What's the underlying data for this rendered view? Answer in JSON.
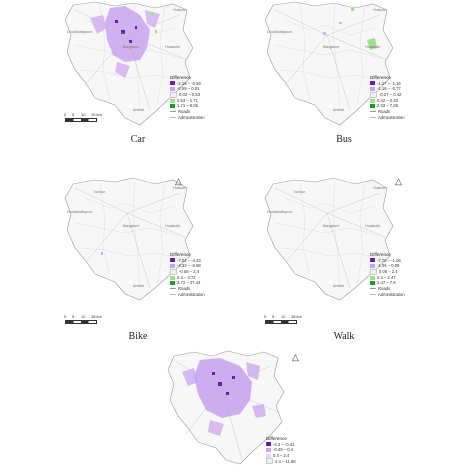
{
  "colors": {
    "purple_dark": "#6a1bb3",
    "purple_light": "#c9a3f0",
    "lavender": "#e6d6fb",
    "green_light": "#9fe08a",
    "green_dark": "#1c9c2a",
    "roads": "#b4b4b4",
    "admin": "#d0d0d0"
  },
  "north_symbol": "north-arrow-icon",
  "scale": {
    "ticks": [
      "0",
      "5",
      "10",
      "15 km"
    ]
  },
  "panels": [
    {
      "id": "car",
      "caption": "Car",
      "legend": {
        "title": "Difference",
        "classes": [
          "-2.19 – -0.59",
          "-0.59 – 0.01",
          "0.02 – 0.53",
          "0.53 – 1.71",
          "1.71 – 6.05"
        ],
        "roads": "Roads",
        "admin": "Administration"
      },
      "places": [
        "Doddaballapura",
        "Hoskote",
        "Bangalore",
        "Hosakote",
        "Anekal"
      ]
    },
    {
      "id": "bus",
      "caption": "Bus",
      "legend": {
        "title": "Difference",
        "classes": [
          "-1.27 – -1.16",
          "-1.16 – -0.77",
          "-0.27 – 0.42",
          "0.42 – 2.33",
          "2.33 – 7.08"
        ],
        "roads": "Roads",
        "admin": "Administration"
      },
      "places": [
        "Doddaballapura",
        "Hoskote",
        "Bangalore",
        "Hosakote",
        "Anekal"
      ]
    },
    {
      "id": "bike",
      "caption": "Bike",
      "legend": {
        "title": "Difference",
        "classes": [
          "-7.04 – -4.33",
          "-4.33 – -0.58",
          "-0.58 – 2.4",
          "2.4 – 3.72",
          "3.72 – 37.43"
        ],
        "roads": "Roads",
        "admin": "Administration"
      },
      "places": [
        "Tumkur",
        "Doddaballapura",
        "Hoskote",
        "Bangalore",
        "Hosakote",
        "Anekal"
      ]
    },
    {
      "id": "walk",
      "caption": "Walk",
      "legend": {
        "title": "Difference",
        "classes": [
          "-7.78 – -1.06",
          "-1.06 – 0.06",
          "0.06 – 2.4",
          "2.4 – 2.47",
          "2.47 – 7.8"
        ],
        "roads": "Roads",
        "admin": "Administration"
      },
      "places": [
        "Tumkur",
        "Doddaballapura",
        "Hoskote",
        "Bangalore",
        "Hosakote",
        "Anekal"
      ]
    },
    {
      "id": "all",
      "caption": "",
      "legend": {
        "title": "Difference",
        "classes": [
          "-4.3 – -0.41",
          "-0.49 – 0.4",
          "0.4 – 2.4",
          "2.4 – 11.86"
        ],
        "roads": "",
        "admin": ""
      },
      "places": []
    }
  ]
}
